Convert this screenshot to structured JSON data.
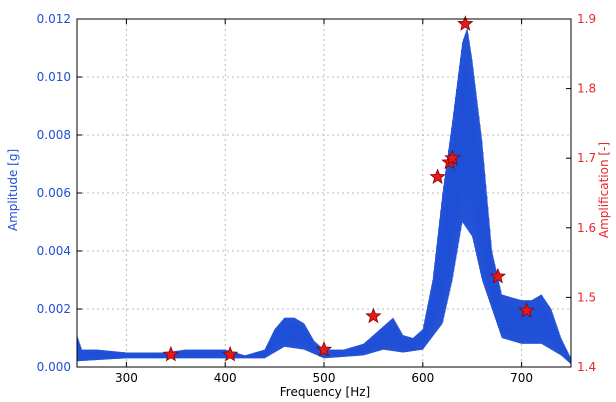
{
  "chart_data": {
    "type": "line",
    "xlabel": "Frequency [Hz]",
    "ylabel_left": "Amplitude [g]",
    "ylabel_right": "Amplification [-]",
    "xlim": [
      250,
      750
    ],
    "ylim_left": [
      0.0,
      0.012
    ],
    "ylim_right": [
      1.4,
      1.9
    ],
    "x_ticks": [
      300,
      400,
      500,
      600,
      700
    ],
    "y_ticks_left": [
      0.0,
      0.002,
      0.004,
      0.006,
      0.008,
      0.01,
      0.012
    ],
    "y_ticks_right": [
      1.4,
      1.5,
      1.6,
      1.7,
      1.8,
      1.9
    ],
    "grid": true,
    "colors": {
      "left_axis": "#1f4fd6",
      "right_axis": "#e8262b",
      "series": "#1f4fd6",
      "markers": "#e41a1c",
      "marker_edge": "#8a0000"
    },
    "series": [
      {
        "axis": "left",
        "style": "line",
        "envelope_upper": [
          [
            250,
            0.0011
          ],
          [
            255,
            0.0006
          ],
          [
            270,
            0.0006
          ],
          [
            300,
            0.0005
          ],
          [
            340,
            0.0005
          ],
          [
            360,
            0.0006
          ],
          [
            380,
            0.0006
          ],
          [
            400,
            0.0006
          ],
          [
            420,
            0.0004
          ],
          [
            440,
            0.0006
          ],
          [
            450,
            0.0013
          ],
          [
            460,
            0.0017
          ],
          [
            470,
            0.0017
          ],
          [
            480,
            0.0015
          ],
          [
            490,
            0.0009
          ],
          [
            500,
            0.0006
          ],
          [
            520,
            0.0006
          ],
          [
            540,
            0.0008
          ],
          [
            550,
            0.0011
          ],
          [
            560,
            0.0014
          ],
          [
            570,
            0.0017
          ],
          [
            580,
            0.0011
          ],
          [
            590,
            0.001
          ],
          [
            600,
            0.0013
          ],
          [
            610,
            0.003
          ],
          [
            620,
            0.006
          ],
          [
            630,
            0.0085
          ],
          [
            640,
            0.0112
          ],
          [
            645,
            0.0117
          ],
          [
            650,
            0.0106
          ],
          [
            660,
            0.0078
          ],
          [
            670,
            0.004
          ],
          [
            680,
            0.0025
          ],
          [
            700,
            0.0023
          ],
          [
            710,
            0.0023
          ],
          [
            720,
            0.0025
          ],
          [
            730,
            0.002
          ],
          [
            740,
            0.001
          ],
          [
            750,
            0.0003
          ]
        ],
        "envelope_lower": [
          [
            250,
            0.0002
          ],
          [
            300,
            0.0003
          ],
          [
            340,
            0.0003
          ],
          [
            400,
            0.0003
          ],
          [
            440,
            0.0003
          ],
          [
            460,
            0.0007
          ],
          [
            480,
            0.0006
          ],
          [
            500,
            0.0003
          ],
          [
            540,
            0.0004
          ],
          [
            560,
            0.0006
          ],
          [
            580,
            0.0005
          ],
          [
            600,
            0.0006
          ],
          [
            620,
            0.0015
          ],
          [
            630,
            0.003
          ],
          [
            640,
            0.005
          ],
          [
            650,
            0.0045
          ],
          [
            660,
            0.003
          ],
          [
            680,
            0.001
          ],
          [
            700,
            0.0008
          ],
          [
            720,
            0.0008
          ],
          [
            740,
            0.0004
          ],
          [
            750,
            0.0001
          ]
        ]
      },
      {
        "axis": "right",
        "style": "markers",
        "marker": "star",
        "points": [
          [
            345,
            1.418
          ],
          [
            405,
            1.418
          ],
          [
            500,
            1.425
          ],
          [
            550,
            1.473
          ],
          [
            615,
            1.673
          ],
          [
            627,
            1.694
          ],
          [
            630,
            1.7
          ],
          [
            643,
            1.893
          ],
          [
            676,
            1.53
          ],
          [
            705,
            1.481
          ]
        ]
      }
    ]
  }
}
